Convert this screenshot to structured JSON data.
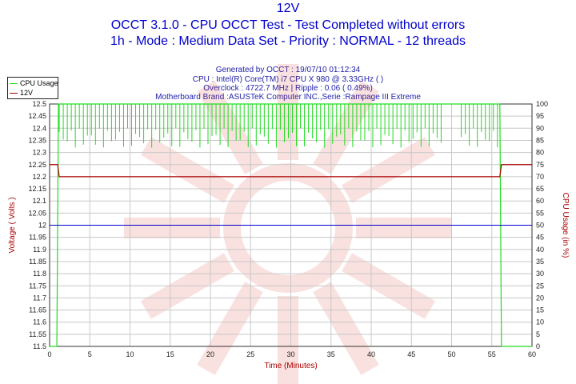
{
  "titles": {
    "line1": "12V",
    "line2": "OCCT 3.1.0 - CPU OCCT Test - Test Completed without errors",
    "line3": "1h - Mode : Medium Data Set - Priority : NORMAL - 12 threads"
  },
  "info": {
    "generated": "Generated by OCCT : 19/07/10 01:12:34",
    "cpu": "CPU : Intel(R) Core(TM) i7 CPU X 980 @ 3.33GHz (  )",
    "overclock": "Overclock : 4722.7 MHz | Ripple : 0.06 ( 0.49%)",
    "motherboard": "Motherboard Brand :ASUSTeK Computer INC.,Serie :Rampage III Extreme"
  },
  "legend": [
    {
      "label": "CPU Usage",
      "color": "#22dd22"
    },
    {
      "label": "12V",
      "color": "#aa0000"
    }
  ],
  "colors": {
    "cpu": "#22dd22",
    "v12": "#aa0000",
    "threshold": "#0000cc",
    "grid": "#c8c8c8"
  },
  "chart_data": {
    "type": "line",
    "xlabel": "Time (Minutes)",
    "ylabel": "Voltage ( Volts )",
    "y2label": "CPU Usage (in %)",
    "xlim": [
      0,
      60
    ],
    "ylim": [
      11.5,
      12.5
    ],
    "y2lim": [
      0,
      100
    ],
    "x_ticks": [
      0,
      5,
      10,
      15,
      20,
      25,
      30,
      35,
      40,
      45,
      50,
      55,
      60
    ],
    "y_ticks": [
      "11.5",
      "11.55",
      "11.6",
      "11.65",
      "11.7",
      "11.75",
      "11.8",
      "11.85",
      "11.9",
      "11.95",
      "12",
      "12.05",
      "12.1",
      "12.15",
      "12.2",
      "12.25",
      "12.3",
      "12.35",
      "12.4",
      "12.45",
      "12.5"
    ],
    "y2_ticks": [
      0,
      5,
      10,
      15,
      20,
      25,
      30,
      35,
      40,
      45,
      50,
      55,
      60,
      65,
      70,
      75,
      80,
      85,
      90,
      95,
      100
    ],
    "grid": true,
    "legend_position": "top-left",
    "series": [
      {
        "name": "12V",
        "axis": "left",
        "x": [
          0,
          1.0,
          1.2,
          56.0,
          56.2,
          60
        ],
        "y": [
          12.25,
          12.25,
          12.2,
          12.2,
          12.25,
          12.25
        ]
      },
      {
        "name": "CPU Usage",
        "axis": "right",
        "x": [
          0,
          0.9,
          1.1,
          56.0,
          56.2,
          60
        ],
        "y": [
          0,
          0,
          100,
          100,
          0,
          0
        ],
        "dip_range": [
          1.2,
          55.8
        ],
        "dip_gaps": [
          [
            48.8,
            51.0
          ]
        ],
        "dip_min": 82
      },
      {
        "name": "",
        "axis": "left",
        "x": [
          0,
          60
        ],
        "y": [
          12.0,
          12.0
        ]
      }
    ]
  }
}
